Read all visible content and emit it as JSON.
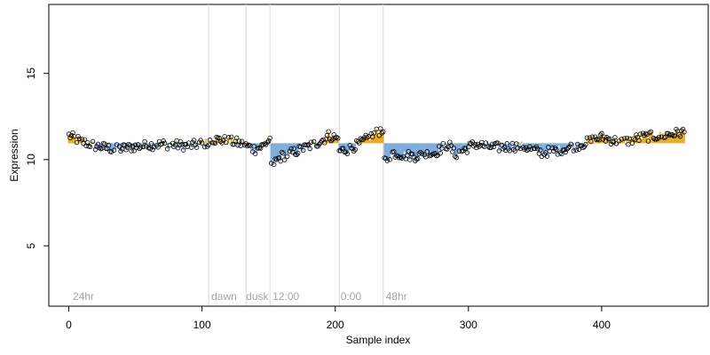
{
  "chart_data": {
    "type": "scatter",
    "title": "",
    "xlabel": "Sample index",
    "ylabel": "Expression",
    "xlim": [
      -15,
      480
    ],
    "ylim": [
      1.5,
      19
    ],
    "x_ticks": [
      0,
      100,
      200,
      300,
      400
    ],
    "x_tick_labels": [
      "0",
      "100",
      "200",
      "300",
      "400"
    ],
    "y_ticks": [
      5,
      10,
      15
    ],
    "y_tick_labels": [
      "5",
      "10",
      "15"
    ],
    "grid": false,
    "vlines": [
      105,
      133,
      151,
      203,
      236
    ],
    "region_labels": [
      {
        "x": 3,
        "text": "24hr"
      },
      {
        "x": 107,
        "text": "dawn"
      },
      {
        "x": 133,
        "text": "dusk"
      },
      {
        "x": 153,
        "text": "12:00"
      },
      {
        "x": 204,
        "text": "0:00"
      },
      {
        "x": 238,
        "text": "48hr"
      }
    ],
    "series_colors": {
      "points": "#000000",
      "above_fill": "#e69f00",
      "below_fill": "#6fa0d6",
      "vline": "#d9d9d9"
    },
    "segments": [
      {
        "x_start": 0,
        "baseline": 10.95,
        "anchors": [
          [
            0,
            11.4
          ],
          [
            8,
            11.1
          ],
          [
            20,
            10.8
          ],
          [
            35,
            10.6
          ],
          [
            50,
            10.75
          ],
          [
            70,
            10.9
          ],
          [
            90,
            10.8
          ],
          [
            105,
            11.0
          ]
        ]
      },
      {
        "x_start": 106,
        "baseline": 10.95,
        "anchors": [
          [
            106,
            11.2
          ],
          [
            118,
            11.1
          ],
          [
            126,
            11.0
          ],
          [
            133,
            10.8
          ],
          [
            140,
            10.6
          ],
          [
            146,
            10.8
          ],
          [
            151,
            11.2
          ]
        ]
      },
      {
        "x_start": 152,
        "baseline": 10.95,
        "anchors": [
          [
            152,
            9.7
          ],
          [
            160,
            10.2
          ],
          [
            175,
            10.6
          ],
          [
            190,
            11.1
          ],
          [
            195,
            11.4
          ],
          [
            202,
            11.2
          ]
        ]
      },
      {
        "x_start": 203,
        "baseline": 10.95,
        "anchors": [
          [
            203,
            10.5
          ],
          [
            210,
            10.6
          ],
          [
            220,
            11.0
          ],
          [
            228,
            11.4
          ],
          [
            236,
            11.8
          ]
        ]
      },
      {
        "x_start": 237,
        "baseline": 10.95,
        "anchors": [
          [
            237,
            9.9
          ],
          [
            243,
            10.4
          ],
          [
            250,
            10.3
          ],
          [
            260,
            10.2
          ],
          [
            275,
            10.4
          ],
          [
            285,
            10.9
          ],
          [
            290,
            10.3
          ],
          [
            295,
            10.5
          ],
          [
            305,
            10.9
          ],
          [
            320,
            10.7
          ],
          [
            340,
            10.8
          ],
          [
            355,
            10.4
          ],
          [
            370,
            10.6
          ],
          [
            385,
            10.9
          ],
          [
            400,
            11.3
          ],
          [
            415,
            11.0
          ],
          [
            430,
            11.3
          ],
          [
            445,
            11.4
          ],
          [
            462,
            11.6
          ]
        ]
      }
    ]
  }
}
